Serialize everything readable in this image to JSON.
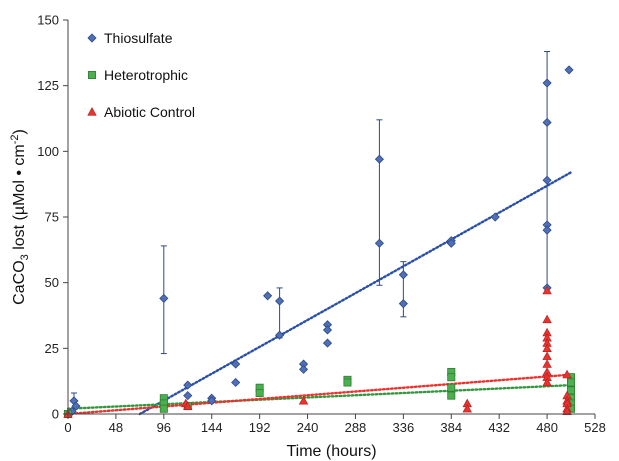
{
  "chart_data": {
    "type": "scatter",
    "xlabel": "Time (hours)",
    "ylabel_parts": {
      "pre": "CaCO",
      "sub": "3",
      "mid": " lost (µMol • cm",
      "sup": "-2",
      "post": ")"
    },
    "xlim": [
      0,
      528
    ],
    "ylim": [
      0,
      150
    ],
    "xticks": [
      0,
      48,
      96,
      144,
      192,
      240,
      288,
      336,
      384,
      432,
      480,
      528
    ],
    "yticks": [
      0,
      25,
      50,
      75,
      100,
      125,
      150
    ],
    "grid": false,
    "legend_position": "top-left",
    "series": [
      {
        "name": "Thiosulfate",
        "marker": "diamond",
        "color": "#4f6fb6",
        "trendline": {
          "style": "dotted",
          "color": "#2a4fa8",
          "from": [
            72,
            0
          ],
          "to": [
            504,
            92
          ]
        },
        "points": [
          [
            0,
            0
          ],
          [
            4,
            1
          ],
          [
            6,
            5
          ],
          [
            8,
            3
          ],
          [
            96,
            44
          ],
          [
            120,
            11
          ],
          [
            120,
            7
          ],
          [
            144,
            6
          ],
          [
            144,
            5
          ],
          [
            168,
            19
          ],
          [
            168,
            12
          ],
          [
            200,
            45
          ],
          [
            212,
            43
          ],
          [
            212,
            30
          ],
          [
            236,
            19
          ],
          [
            236,
            17
          ],
          [
            260,
            34
          ],
          [
            260,
            32
          ],
          [
            260,
            27
          ],
          [
            312,
            97
          ],
          [
            312,
            65
          ],
          [
            336,
            53
          ],
          [
            336,
            42
          ],
          [
            384,
            66
          ],
          [
            384,
            65
          ],
          [
            428,
            75
          ],
          [
            480,
            126
          ],
          [
            480,
            111
          ],
          [
            480,
            89
          ],
          [
            480,
            72
          ],
          [
            480,
            70
          ],
          [
            480,
            48
          ],
          [
            502,
            131
          ]
        ],
        "error_bars": [
          {
            "x": 6,
            "y": 5,
            "low": 2,
            "high": 8
          },
          {
            "x": 96,
            "y": 44,
            "low": 23,
            "high": 64
          },
          {
            "x": 212,
            "y": 43,
            "low": 29,
            "high": 48
          },
          {
            "x": 312,
            "y": 80,
            "low": 49,
            "high": 112
          },
          {
            "x": 336,
            "y": 48,
            "low": 37,
            "high": 58
          },
          {
            "x": 480,
            "y": 100,
            "low": 48,
            "high": 138
          }
        ]
      },
      {
        "name": "Heterotrophic",
        "marker": "square",
        "color": "#4caf50",
        "trendline": {
          "style": "dotted",
          "color": "#2e9a3a",
          "from": [
            0,
            2
          ],
          "to": [
            504,
            11
          ]
        },
        "points": [
          [
            0,
            0
          ],
          [
            96,
            6
          ],
          [
            96,
            4
          ],
          [
            96,
            2
          ],
          [
            120,
            3
          ],
          [
            192,
            10
          ],
          [
            192,
            8
          ],
          [
            280,
            13
          ],
          [
            280,
            12
          ],
          [
            384,
            16
          ],
          [
            384,
            14
          ],
          [
            384,
            10
          ],
          [
            384,
            7
          ],
          [
            504,
            14
          ],
          [
            504,
            12
          ],
          [
            504,
            9
          ],
          [
            504,
            6
          ],
          [
            504,
            4
          ],
          [
            504,
            2
          ]
        ]
      },
      {
        "name": "Abiotic Control",
        "marker": "triangle",
        "color": "#e8332f",
        "trendline": {
          "style": "dotted",
          "color": "#e8332f",
          "from": [
            0,
            0
          ],
          "to": [
            504,
            15
          ]
        },
        "points": [
          [
            0,
            0
          ],
          [
            118,
            4
          ],
          [
            120,
            3
          ],
          [
            236,
            5
          ],
          [
            400,
            4
          ],
          [
            400,
            2
          ],
          [
            480,
            47
          ],
          [
            480,
            36
          ],
          [
            480,
            31
          ],
          [
            480,
            29
          ],
          [
            480,
            27
          ],
          [
            480,
            25
          ],
          [
            480,
            22
          ],
          [
            480,
            19
          ],
          [
            480,
            16
          ],
          [
            480,
            14
          ],
          [
            480,
            12
          ],
          [
            500,
            15
          ],
          [
            500,
            7
          ],
          [
            500,
            5
          ],
          [
            500,
            4
          ],
          [
            500,
            2
          ],
          [
            500,
            1
          ]
        ]
      }
    ]
  }
}
